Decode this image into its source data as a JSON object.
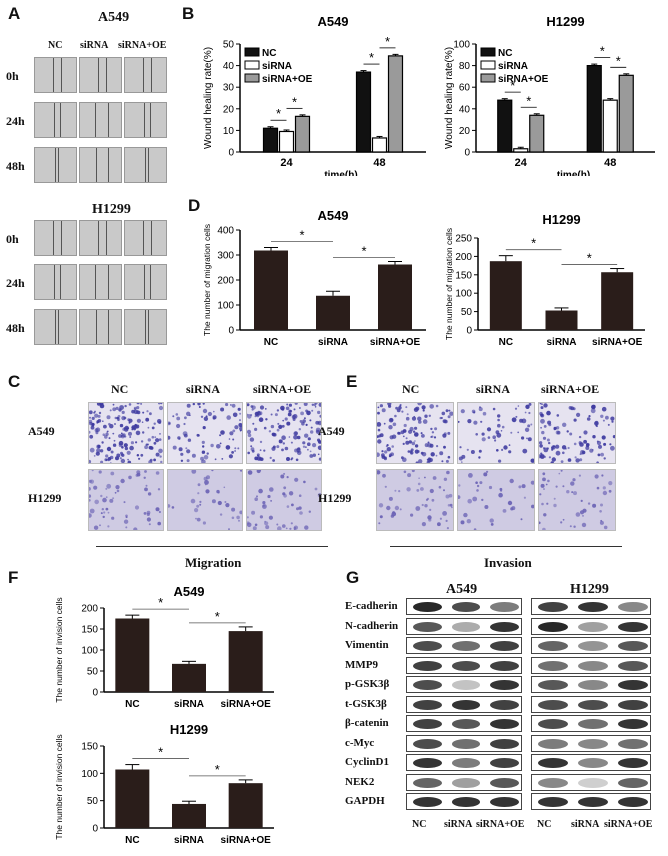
{
  "panel_letters": {
    "a": "A",
    "b": "B",
    "c": "C",
    "d": "D",
    "e": "E",
    "f": "F",
    "g": "G"
  },
  "panel_a": {
    "top_title": "A549",
    "bottom_title": "H1299",
    "columns": [
      "NC",
      "siRNA",
      "siRNA+OE"
    ],
    "rows": [
      "0h",
      "24h",
      "48h"
    ]
  },
  "panel_ce": {
    "columns": [
      "NC",
      "siRNA",
      "siRNA+OE"
    ],
    "rows": [
      "A549",
      "H1299"
    ],
    "c_caption": "Migration",
    "e_caption": "Invasion"
  },
  "panel_g": {
    "columns_a549": [
      "NC",
      "siRNA",
      "siRNA+OE"
    ],
    "columns_h1299": [
      "NC",
      "siRNA",
      "siRNA+OE"
    ],
    "title_a549": "A549",
    "title_h1299": "H1299",
    "proteins": [
      "E-cadherin",
      "N-cadherin",
      "Vimentin",
      "MMP9",
      "p-GSK3β",
      "t-GSK3β",
      "β-catenin",
      "c-Myc",
      "CyclinD1",
      "NEK2",
      "GAPDH"
    ]
  },
  "colors": {
    "nc": "#111111",
    "sirna": "#ffffff",
    "sirna_oe": "#9a9a9a",
    "bar_dark": "#2a1d1a",
    "stain_purple": "#3e3aa0",
    "stain_light": "#b9b3d8"
  },
  "chart_data": [
    {
      "id": "B-A549",
      "type": "bar",
      "title": "A549",
      "xlabel": "time(h)",
      "ylabel": "Wound healing rate(%)",
      "categories": [
        "24",
        "48"
      ],
      "ylim": [
        0,
        50
      ],
      "yticks": [
        0,
        10,
        20,
        30,
        40,
        50
      ],
      "series": [
        {
          "name": "NC",
          "values": [
            11,
            37
          ]
        },
        {
          "name": "siRNA",
          "values": [
            9.5,
            6.5
          ]
        },
        {
          "name": "siRNA+OE",
          "values": [
            16.5,
            44.5
          ]
        }
      ],
      "legend": [
        "NC",
        "siRNA",
        "siRNA+OE"
      ],
      "legend_position": "top-left",
      "annotations": [
        "*",
        "*",
        "*",
        "*"
      ]
    },
    {
      "id": "B-H1299",
      "type": "bar",
      "title": "H1299",
      "xlabel": "time(h)",
      "ylabel": "Wound healing rate(%)",
      "categories": [
        "24",
        "48"
      ],
      "ylim": [
        0,
        100
      ],
      "yticks": [
        0,
        20,
        40,
        60,
        80,
        100
      ],
      "series": [
        {
          "name": "NC",
          "values": [
            48,
            80
          ]
        },
        {
          "name": "siRNA",
          "values": [
            3,
            48
          ]
        },
        {
          "name": "siRNA+OE",
          "values": [
            34,
            71
          ]
        }
      ],
      "legend": [
        "NC",
        "siRNA",
        "siRNA+OE"
      ],
      "legend_position": "top-left",
      "annotations": [
        "*",
        "*",
        "*",
        "*"
      ]
    },
    {
      "id": "D-A549",
      "type": "bar",
      "title": "A549",
      "xlabel": "",
      "ylabel": "The number of migration cells",
      "categories": [
        "NC",
        "siRNA",
        "siRNA+OE"
      ],
      "ylim": [
        0,
        400
      ],
      "yticks": [
        0,
        100,
        200,
        300,
        400
      ],
      "values": [
        318,
        137,
        262
      ],
      "errors": [
        12,
        18,
        12
      ],
      "annotations": [
        "*",
        "*"
      ]
    },
    {
      "id": "D-H1299",
      "type": "bar",
      "title": "H1299",
      "xlabel": "",
      "ylabel": "The number of migration cells",
      "categories": [
        "NC",
        "siRNA",
        "siRNA+OE"
      ],
      "ylim": [
        0,
        250
      ],
      "yticks": [
        0,
        50,
        100,
        150,
        200,
        250
      ],
      "values": [
        187,
        53,
        157
      ],
      "errors": [
        15,
        7,
        10
      ],
      "annotations": [
        "*",
        "*"
      ]
    },
    {
      "id": "F-A549",
      "type": "bar",
      "title": "A549",
      "xlabel": "",
      "ylabel": "The number of invision cells",
      "categories": [
        "NC",
        "siRNA",
        "siRNA+OE"
      ],
      "ylim": [
        0,
        200
      ],
      "yticks": [
        0,
        50,
        100,
        150,
        200
      ],
      "values": [
        175,
        67,
        145
      ],
      "errors": [
        8,
        6,
        10
      ],
      "annotations": [
        "*",
        "*"
      ]
    },
    {
      "id": "F-H1299",
      "type": "bar",
      "title": "H1299",
      "xlabel": "",
      "ylabel": "The number of invision cells",
      "categories": [
        "NC",
        "siRNA",
        "siRNA+OE"
      ],
      "ylim": [
        0,
        150
      ],
      "yticks": [
        0,
        50,
        100,
        150
      ],
      "values": [
        107,
        44,
        82
      ],
      "errors": [
        9,
        5,
        6
      ],
      "annotations": [
        "*",
        "*"
      ]
    }
  ]
}
